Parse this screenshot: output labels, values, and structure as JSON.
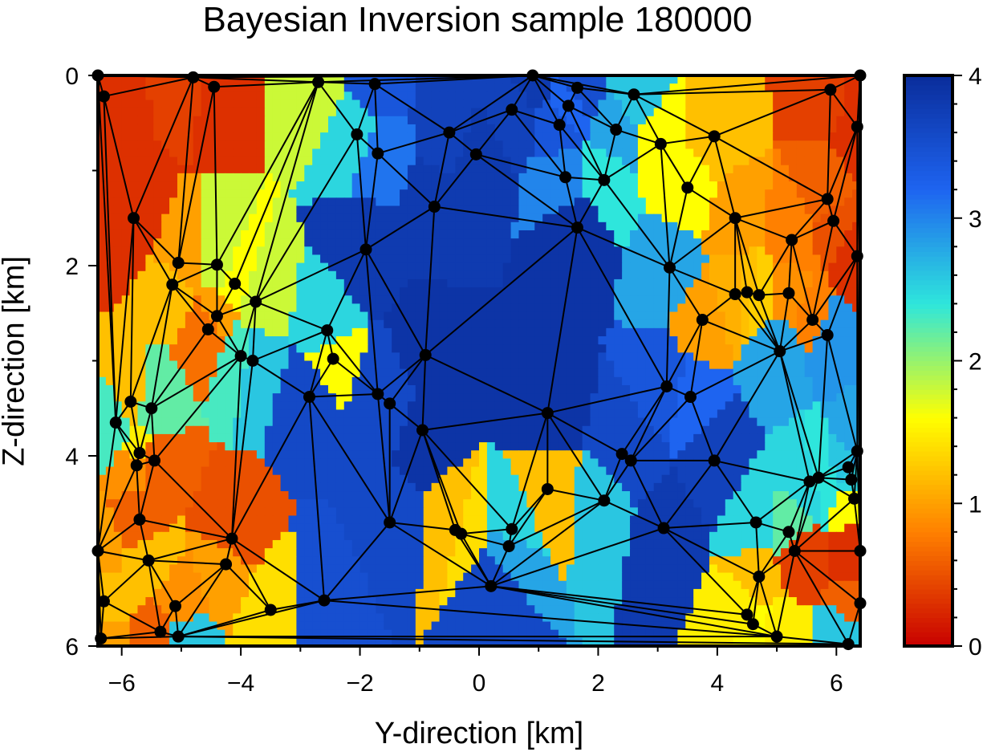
{
  "chart_data": {
    "type": "heatmap",
    "title": "Bayesian Inversion sample 180000",
    "xlabel": "Y-direction [km]",
    "ylabel": "Z-direction [km]",
    "xlim": [
      -6.4,
      6.4
    ],
    "ylim": [
      6,
      0
    ],
    "x_ticks": [
      -6,
      -4,
      -2,
      0,
      2,
      4,
      6
    ],
    "x_tick_labels": [
      "−6",
      "−4",
      "−2",
      "0",
      "2",
      "4",
      "6"
    ],
    "y_ticks": [
      0,
      2,
      4,
      6
    ],
    "y_tick_labels": [
      "0",
      "2",
      "4",
      "6"
    ],
    "colorbar": {
      "range": [
        0,
        4
      ],
      "ticks": [
        0,
        1,
        2,
        3,
        4
      ],
      "tick_labels": [
        "0",
        "1",
        "2",
        "3",
        "4"
      ],
      "colors": [
        "#c80000",
        "#ff8000",
        "#ffff00",
        "#2ee6dc",
        "#1e64f0",
        "#0a2d9b"
      ]
    },
    "nodes": [
      {
        "y": -6.4,
        "z": 0.0,
        "v": 0.3
      },
      {
        "y": -6.3,
        "z": 0.22,
        "v": 0.3
      },
      {
        "y": -4.8,
        "z": 0.02,
        "v": 0.4
      },
      {
        "y": -4.45,
        "z": 0.12,
        "v": 0.3
      },
      {
        "y": -2.7,
        "z": 0.07,
        "v": 1.8
      },
      {
        "y": -1.75,
        "z": 0.09,
        "v": 3.4
      },
      {
        "y": 0.9,
        "z": 0.0,
        "v": 3.8
      },
      {
        "y": 1.65,
        "z": 0.13,
        "v": 3.5
      },
      {
        "y": 2.6,
        "z": 0.2,
        "v": 2.6
      },
      {
        "y": 5.9,
        "z": 0.15,
        "v": 0.4
      },
      {
        "y": 6.4,
        "z": 0.0,
        "v": 0.3
      },
      {
        "y": 1.5,
        "z": 0.32,
        "v": 3.2
      },
      {
        "y": 0.55,
        "z": 0.36,
        "v": 3.7
      },
      {
        "y": 1.35,
        "z": 0.52,
        "v": 3.4
      },
      {
        "y": 2.3,
        "z": 0.57,
        "v": 2.8
      },
      {
        "y": -2.05,
        "z": 0.62,
        "v": 2.5
      },
      {
        "y": -0.5,
        "z": 0.6,
        "v": 3.7
      },
      {
        "y": -1.7,
        "z": 0.82,
        "v": 3.1
      },
      {
        "y": -0.05,
        "z": 0.83,
        "v": 3.8
      },
      {
        "y": 3.05,
        "z": 0.72,
        "v": 1.6
      },
      {
        "y": 3.95,
        "z": 0.64,
        "v": 1.2
      },
      {
        "y": 6.35,
        "z": 0.54,
        "v": 0.3
      },
      {
        "y": 1.45,
        "z": 1.07,
        "v": 3.0
      },
      {
        "y": 2.1,
        "z": 1.1,
        "v": 2.4
      },
      {
        "y": 3.5,
        "z": 1.18,
        "v": 1.6
      },
      {
        "y": -5.8,
        "z": 1.5,
        "v": 0.3
      },
      {
        "y": -0.75,
        "z": 1.38,
        "v": 3.8
      },
      {
        "y": 1.65,
        "z": 1.6,
        "v": 3.9
      },
      {
        "y": 4.3,
        "z": 1.5,
        "v": 1.0
      },
      {
        "y": 5.85,
        "z": 1.3,
        "v": 0.6
      },
      {
        "y": 5.95,
        "z": 1.53,
        "v": 0.5
      },
      {
        "y": 5.25,
        "z": 1.73,
        "v": 0.8
      },
      {
        "y": -5.05,
        "z": 1.97,
        "v": 1.0
      },
      {
        "y": -4.4,
        "z": 1.99,
        "v": 1.8
      },
      {
        "y": -1.9,
        "z": 1.83,
        "v": 3.8
      },
      {
        "y": 3.2,
        "z": 2.02,
        "v": 2.8
      },
      {
        "y": 6.35,
        "z": 1.9,
        "v": 0.3
      },
      {
        "y": -5.15,
        "z": 2.2,
        "v": 1.2
      },
      {
        "y": -4.1,
        "z": 2.19,
        "v": 1.6
      },
      {
        "y": -3.75,
        "z": 2.38,
        "v": 1.8
      },
      {
        "y": 4.3,
        "z": 2.3,
        "v": 1.1
      },
      {
        "y": 4.5,
        "z": 2.28,
        "v": 1.2
      },
      {
        "y": 4.7,
        "z": 2.31,
        "v": 1.3
      },
      {
        "y": 5.2,
        "z": 2.29,
        "v": 0.9
      },
      {
        "y": -4.4,
        "z": 2.53,
        "v": 1.0
      },
      {
        "y": -4.55,
        "z": 2.67,
        "v": 0.7
      },
      {
        "y": 3.75,
        "z": 2.57,
        "v": 1.0
      },
      {
        "y": 5.6,
        "z": 2.57,
        "v": 0.8
      },
      {
        "y": -2.55,
        "z": 2.68,
        "v": 2.5
      },
      {
        "y": 5.85,
        "z": 2.73,
        "v": 2.9
      },
      {
        "y": -2.45,
        "z": 2.98,
        "v": 1.6
      },
      {
        "y": -4.0,
        "z": 2.95,
        "v": 2.3
      },
      {
        "y": -3.8,
        "z": 3.0,
        "v": 2.6
      },
      {
        "y": -0.9,
        "z": 2.94,
        "v": 3.9
      },
      {
        "y": 5.05,
        "z": 2.9,
        "v": 2.8
      },
      {
        "y": -5.85,
        "z": 3.43,
        "v": 1.2
      },
      {
        "y": -5.5,
        "z": 3.5,
        "v": 2.2
      },
      {
        "y": -2.85,
        "z": 3.38,
        "v": 3.6
      },
      {
        "y": -1.7,
        "z": 3.35,
        "v": 3.6
      },
      {
        "y": -1.5,
        "z": 3.45,
        "v": 3.6
      },
      {
        "y": 3.15,
        "z": 3.27,
        "v": 3.4
      },
      {
        "y": 3.55,
        "z": 3.38,
        "v": 3.2
      },
      {
        "y": -6.1,
        "z": 3.65,
        "v": 2.3
      },
      {
        "y": 1.15,
        "z": 3.55,
        "v": 3.9
      },
      {
        "y": -0.95,
        "z": 3.73,
        "v": 3.9
      },
      {
        "y": -5.7,
        "z": 3.97,
        "v": 1.5
      },
      {
        "y": -5.75,
        "z": 4.1,
        "v": 0.9
      },
      {
        "y": -5.45,
        "z": 4.05,
        "v": 0.6
      },
      {
        "y": 2.4,
        "z": 3.98,
        "v": 3.6
      },
      {
        "y": 2.55,
        "z": 4.05,
        "v": 3.6
      },
      {
        "y": 3.95,
        "z": 4.05,
        "v": 3.7
      },
      {
        "y": 6.35,
        "z": 3.95,
        "v": 2.8
      },
      {
        "y": 6.2,
        "z": 4.12,
        "v": 2.6
      },
      {
        "y": 6.25,
        "z": 4.25,
        "v": 2.5
      },
      {
        "y": 5.55,
        "z": 4.27,
        "v": 2.5
      },
      {
        "y": 5.7,
        "z": 4.23,
        "v": 2.4
      },
      {
        "y": 1.15,
        "z": 4.35,
        "v": 1.2
      },
      {
        "y": 2.1,
        "z": 4.47,
        "v": 2.6
      },
      {
        "y": 6.3,
        "z": 4.45,
        "v": 1.6
      },
      {
        "y": -5.7,
        "z": 4.67,
        "v": 0.6
      },
      {
        "y": -4.15,
        "z": 4.87,
        "v": 0.5
      },
      {
        "y": -1.5,
        "z": 4.7,
        "v": 3.6
      },
      {
        "y": -0.4,
        "z": 4.78,
        "v": 1.2
      },
      {
        "y": -0.3,
        "z": 4.82,
        "v": 1.4
      },
      {
        "y": 0.55,
        "z": 4.77,
        "v": 2.5
      },
      {
        "y": 0.5,
        "z": 4.95,
        "v": 2.8
      },
      {
        "y": 3.1,
        "z": 4.76,
        "v": 3.8
      },
      {
        "y": 4.65,
        "z": 4.7,
        "v": 2.5
      },
      {
        "y": 5.2,
        "z": 4.8,
        "v": 2.2
      },
      {
        "y": -6.4,
        "z": 5.0,
        "v": 1.0
      },
      {
        "y": 5.3,
        "z": 5.0,
        "v": 0.4
      },
      {
        "y": 6.4,
        "z": 5.0,
        "v": 0.3
      },
      {
        "y": -5.55,
        "z": 5.1,
        "v": 1.2
      },
      {
        "y": -4.25,
        "z": 5.14,
        "v": 1.0
      },
      {
        "y": 4.7,
        "z": 5.27,
        "v": 1.2
      },
      {
        "y": 0.2,
        "z": 5.37,
        "v": 3.6
      },
      {
        "y": -2.6,
        "z": 5.52,
        "v": 3.5
      },
      {
        "y": -6.3,
        "z": 5.53,
        "v": 1.2
      },
      {
        "y": -5.1,
        "z": 5.58,
        "v": 0.9
      },
      {
        "y": 6.4,
        "z": 5.55,
        "v": 0.6
      },
      {
        "y": -3.5,
        "z": 5.62,
        "v": 1.4
      },
      {
        "y": 4.5,
        "z": 5.67,
        "v": 1.5
      },
      {
        "y": 4.6,
        "z": 5.77,
        "v": 1.6
      },
      {
        "y": -5.35,
        "z": 5.85,
        "v": 0.6
      },
      {
        "y": -5.05,
        "z": 5.9,
        "v": 2.6
      },
      {
        "y": -6.35,
        "z": 5.92,
        "v": 1.0
      },
      {
        "y": 6.2,
        "z": 5.98,
        "v": 2.6
      },
      {
        "y": 5.0,
        "z": 5.9,
        "v": 1.5
      }
    ]
  }
}
